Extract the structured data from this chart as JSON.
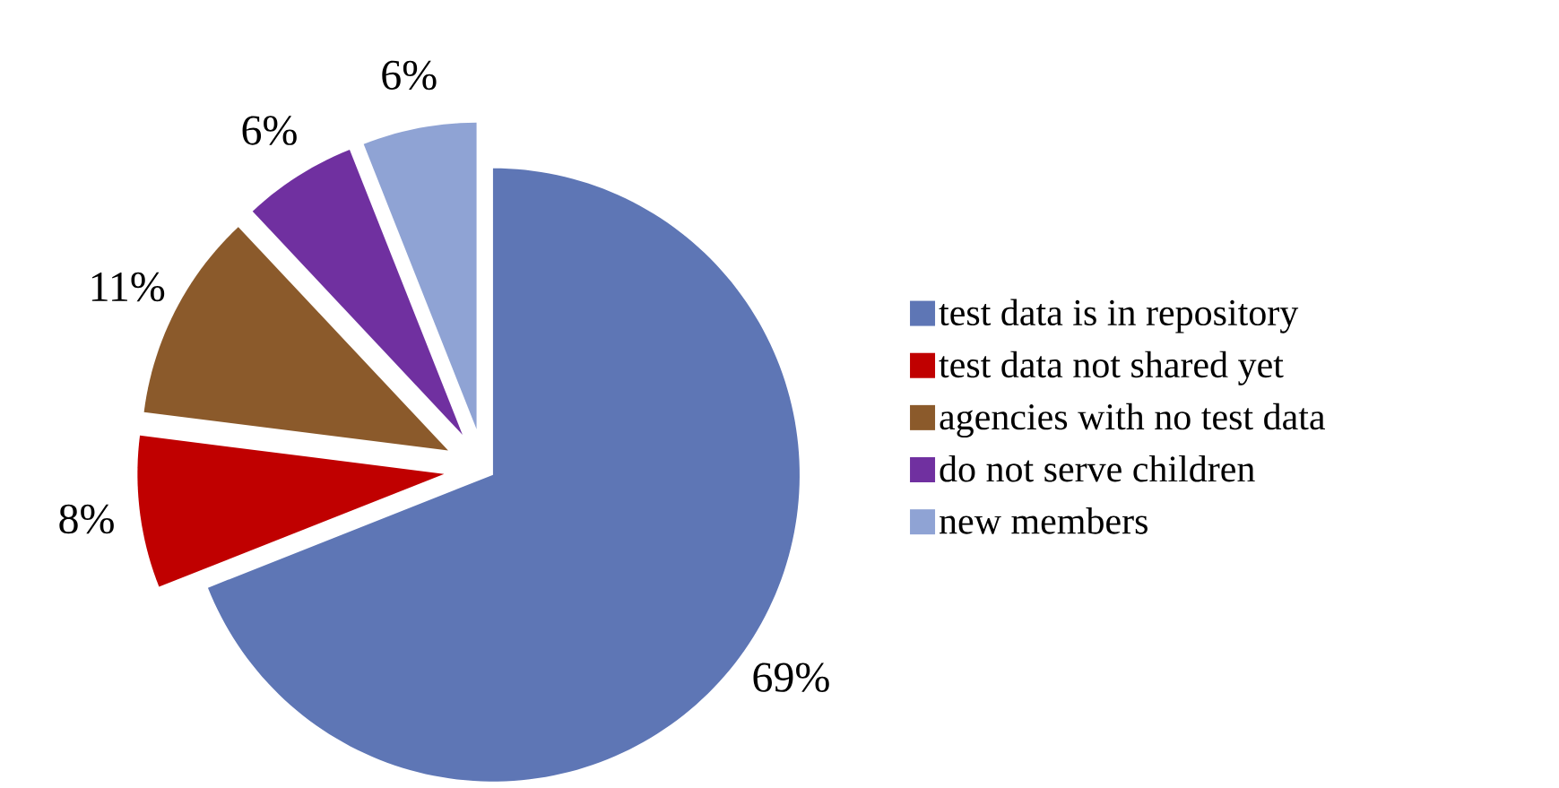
{
  "chart_data": {
    "type": "pie",
    "categories": [
      "test data is in repository",
      "test data not shared yet",
      "agencies with no test data",
      "do not serve children",
      "new members"
    ],
    "values": [
      69,
      8,
      11,
      6,
      6
    ],
    "value_labels": [
      "69%",
      "8%",
      "11%",
      "6%",
      "6%"
    ],
    "colors": [
      "#5e76b5",
      "#c00000",
      "#8b5a2b",
      "#7030a0",
      "#8fa3d4"
    ],
    "legend": "right"
  }
}
